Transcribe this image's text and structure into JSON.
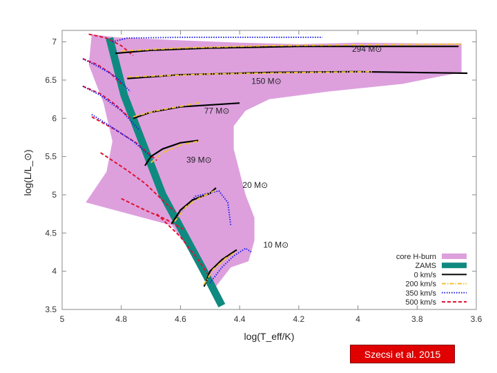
{
  "citation": "Szecsi et al. 2015",
  "chart_data": {
    "type": "line",
    "title": "",
    "xlabel": "log(T_eff/K)",
    "ylabel": "log(L/L_⊙)",
    "xlim": [
      5.0,
      3.6
    ],
    "ylim": [
      3.5,
      7.15
    ],
    "x_reversed": true,
    "xticks": [
      "5",
      "4.8",
      "4.6",
      "4.4",
      "4.2",
      "4",
      "3.8",
      "3.6"
    ],
    "yticks": [
      "3.5",
      "4",
      "4.5",
      "5",
      "5.5",
      "6",
      "6.5",
      "7"
    ],
    "grid": false,
    "legend_position": "bottom-right",
    "legend": [
      {
        "label": "core H-burn",
        "style": "area",
        "color": "#dda0dd"
      },
      {
        "label": "ZAMS",
        "style": "band",
        "color": "#0f8a80"
      },
      {
        "label": "0 km/s",
        "style": "solid",
        "color": "#000000"
      },
      {
        "label": "200 km/s",
        "style": "dashdot",
        "color": "#f0c030"
      },
      {
        "label": "350 km/s",
        "style": "dotted",
        "color": "#1a1ae6"
      },
      {
        "label": "500 km/s",
        "style": "dashed",
        "color": "#e01030"
      }
    ],
    "mass_labels": [
      {
        "text": "294 M⊙",
        "x": 4.02,
        "y": 6.87
      },
      {
        "text": "150 M⊙",
        "x": 4.36,
        "y": 6.45
      },
      {
        "text": "77 M⊙",
        "x": 4.52,
        "y": 6.06
      },
      {
        "text": "39 M⊙",
        "x": 4.58,
        "y": 5.42
      },
      {
        "text": "20 M⊙",
        "x": 4.39,
        "y": 5.09
      },
      {
        "text": "10 M⊙",
        "x": 4.32,
        "y": 4.31
      }
    ],
    "core_h_burn_region": [
      [
        4.9,
        7.1
      ],
      [
        4.82,
        7.06
      ],
      [
        4.6,
        7.02
      ],
      [
        4.4,
        6.99
      ],
      [
        4.2,
        6.97
      ],
      [
        4.0,
        6.99
      ],
      [
        3.8,
        6.98
      ],
      [
        3.65,
        6.98
      ],
      [
        3.65,
        6.6
      ],
      [
        3.72,
        6.55
      ],
      [
        3.85,
        6.45
      ],
      [
        4.1,
        6.35
      ],
      [
        4.3,
        6.25
      ],
      [
        4.38,
        6.1
      ],
      [
        4.42,
        5.9
      ],
      [
        4.42,
        5.6
      ],
      [
        4.4,
        5.3
      ],
      [
        4.38,
        5.0
      ],
      [
        4.35,
        4.7
      ],
      [
        4.35,
        4.4
      ],
      [
        4.37,
        4.13
      ],
      [
        4.43,
        4.05
      ],
      [
        4.48,
        3.8
      ],
      [
        4.63,
        4.6
      ],
      [
        4.92,
        4.9
      ],
      [
        4.85,
        5.3
      ],
      [
        4.83,
        5.7
      ],
      [
        4.86,
        6.2
      ],
      [
        4.91,
        6.7
      ]
    ],
    "zams": [
      [
        4.84,
        7.05
      ],
      [
        4.79,
        6.3
      ],
      [
        4.72,
        5.6
      ],
      [
        4.66,
        5.0
      ],
      [
        4.59,
        4.5
      ],
      [
        4.52,
        4.0
      ],
      [
        4.46,
        3.55
      ]
    ],
    "series": [
      {
        "name": "294 M⊙, 0 km/s",
        "rotation": "0 km/s",
        "x": [
          4.82,
          4.7,
          4.5,
          4.2,
          3.9,
          3.66
        ],
        "y": [
          6.85,
          6.89,
          6.92,
          6.94,
          6.94,
          6.94
        ]
      },
      {
        "name": "294 M⊙, 200 km/s",
        "rotation": "200 km/s",
        "x": [
          4.8,
          4.6,
          4.3,
          4.0,
          3.65
        ],
        "y": [
          6.88,
          6.92,
          6.95,
          6.96,
          6.97
        ]
      },
      {
        "name": "294 M⊙, 350 km/s",
        "rotation": "350 km/s",
        "x": [
          4.83,
          4.78,
          4.6,
          4.3,
          4.12
        ],
        "y": [
          7.0,
          7.05,
          7.06,
          7.06,
          7.06
        ]
      },
      {
        "name": "150 M⊙, 0 km/s",
        "rotation": "0 km/s",
        "x": [
          4.78,
          4.6,
          4.3,
          4.0,
          3.63
        ],
        "y": [
          6.52,
          6.57,
          6.6,
          6.61,
          6.59
        ]
      },
      {
        "name": "150 M⊙, 200 km/s",
        "rotation": "200 km/s",
        "x": [
          4.78,
          4.5,
          4.2,
          3.95
        ],
        "y": [
          6.54,
          6.58,
          6.6,
          6.61
        ]
      },
      {
        "name": "77 M⊙, 0 km/s",
        "rotation": "0 km/s",
        "x": [
          4.76,
          4.7,
          4.6,
          4.4
        ],
        "y": [
          6.0,
          6.08,
          6.15,
          6.2
        ]
      },
      {
        "name": "77 M⊙, 200 km/s",
        "rotation": "200 km/s",
        "x": [
          4.76,
          4.68,
          4.58,
          4.53
        ],
        "y": [
          6.02,
          6.1,
          6.17,
          6.21
        ]
      },
      {
        "name": "39 M⊙, 0 km/s",
        "rotation": "0 km/s",
        "x": [
          4.72,
          4.7,
          4.66,
          4.6,
          4.54
        ],
        "y": [
          5.38,
          5.5,
          5.6,
          5.68,
          5.71
        ]
      },
      {
        "name": "39 M⊙, 200 km/s",
        "rotation": "200 km/s",
        "x": [
          4.7,
          4.66,
          4.6,
          4.53
        ],
        "y": [
          5.42,
          5.55,
          5.65,
          5.71
        ]
      },
      {
        "name": "20 M⊙, 0 km/s",
        "rotation": "0 km/s",
        "x": [
          4.63,
          4.6,
          4.56,
          4.5,
          4.48
        ],
        "y": [
          4.62,
          4.8,
          4.93,
          5.02,
          5.09
        ]
      },
      {
        "name": "20 M⊙, 200 km/s",
        "rotation": "200 km/s",
        "x": [
          4.62,
          4.58,
          4.53,
          4.48
        ],
        "y": [
          4.65,
          4.85,
          4.97,
          5.06
        ]
      },
      {
        "name": "20 M⊙, 350 km/s",
        "rotation": "350 km/s",
        "x": [
          4.62,
          4.55,
          4.47,
          4.44,
          4.43
        ],
        "y": [
          4.67,
          4.98,
          5.05,
          4.9,
          4.6
        ]
      },
      {
        "name": "10 M⊙, 0 km/s",
        "rotation": "0 km/s",
        "x": [
          4.52,
          4.5,
          4.46,
          4.41
        ],
        "y": [
          3.8,
          4.0,
          4.15,
          4.28
        ]
      },
      {
        "name": "10 M⊙, 200 km/s",
        "rotation": "200 km/s",
        "x": [
          4.52,
          4.49,
          4.45,
          4.41
        ],
        "y": [
          3.83,
          4.02,
          4.16,
          4.26
        ]
      },
      {
        "name": "10 M⊙, 350 km/s",
        "rotation": "350 km/s",
        "x": [
          4.5,
          4.46,
          4.42,
          4.38,
          4.36
        ],
        "y": [
          3.85,
          4.05,
          4.2,
          4.3,
          4.25
        ]
      },
      {
        "name": "500 km/s track 1",
        "rotation": "500 km/s",
        "x": [
          4.91,
          4.85,
          4.8,
          4.76
        ],
        "y": [
          7.1,
          7.05,
          6.95,
          6.82
        ]
      },
      {
        "name": "500 km/s track 2",
        "rotation": "500 km/s",
        "x": [
          4.93,
          4.88,
          4.84,
          4.8
        ],
        "y": [
          6.78,
          6.7,
          6.6,
          6.45
        ]
      },
      {
        "name": "500 km/s track 3",
        "rotation": "500 km/s",
        "x": [
          4.93,
          4.87,
          4.82,
          4.77
        ],
        "y": [
          6.42,
          6.32,
          6.18,
          6.0
        ]
      },
      {
        "name": "500 km/s track 4",
        "rotation": "500 km/s",
        "x": [
          4.9,
          4.82,
          4.75,
          4.68
        ],
        "y": [
          6.02,
          5.85,
          5.68,
          5.45
        ]
      },
      {
        "name": "500 km/s track 5",
        "rotation": "500 km/s",
        "x": [
          4.87,
          4.78,
          4.72,
          4.62
        ],
        "y": [
          5.55,
          5.32,
          5.15,
          4.78
        ]
      },
      {
        "name": "500 km/s track 6",
        "rotation": "500 km/s",
        "x": [
          4.8,
          4.72,
          4.65,
          4.59
        ],
        "y": [
          4.95,
          4.8,
          4.68,
          4.55
        ]
      },
      {
        "name": "500 km/s track 7",
        "rotation": "500 km/s",
        "x": [
          4.68,
          4.6,
          4.54,
          4.5
        ],
        "y": [
          4.75,
          4.45,
          4.15,
          3.92
        ]
      },
      {
        "name": "350 km/s track 1",
        "rotation": "350 km/s",
        "x": [
          4.93,
          4.88,
          4.82,
          4.77
        ],
        "y": [
          6.78,
          6.68,
          6.55,
          6.35
        ]
      },
      {
        "name": "350 km/s track 2",
        "rotation": "350 km/s",
        "x": [
          4.93,
          4.87,
          4.8,
          4.74
        ],
        "y": [
          6.42,
          6.3,
          6.1,
          5.85
        ]
      },
      {
        "name": "350 km/s track 3",
        "rotation": "350 km/s",
        "x": [
          4.9,
          4.83,
          4.76,
          4.7
        ],
        "y": [
          6.05,
          5.88,
          5.7,
          5.5
        ]
      }
    ]
  }
}
